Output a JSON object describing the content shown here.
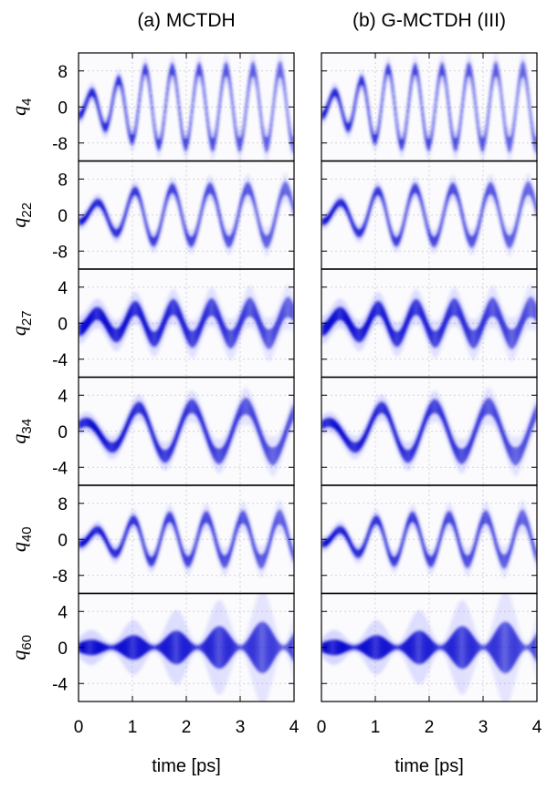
{
  "chart_data": {
    "type": "heatmap",
    "columns": [
      {
        "title": "(a) MCTDH"
      },
      {
        "title": "(b) G-MCTDH (III)"
      }
    ],
    "xlabel": "time [ps]",
    "xlim": [
      0,
      4
    ],
    "xticks": [
      0,
      1,
      2,
      3,
      4
    ],
    "grid": true,
    "rows": [
      {
        "coordinate": "q",
        "index": "4",
        "ylim": [
          -12,
          12
        ],
        "yticks": [
          8,
          0,
          -8
        ],
        "period": 0.5,
        "amp0": 2.0,
        "amp1": 8.5,
        "width": 0.9,
        "spread": 1.0,
        "phase": 0.22
      },
      {
        "coordinate": "q",
        "index": "22",
        "ylim": [
          -12,
          12
        ],
        "yticks": [
          8,
          0,
          -8
        ],
        "period": 0.7,
        "amp0": 1.5,
        "amp1": 6.0,
        "width": 0.8,
        "spread": 0.8,
        "phase": 0.23
      },
      {
        "coordinate": "q",
        "index": "27",
        "ylim": [
          -6,
          6
        ],
        "yticks": [
          4,
          0,
          -4
        ],
        "period": 0.71,
        "amp0": 0.8,
        "amp1": 1.8,
        "width": 0.7,
        "spread": 0.5,
        "phase": 0.22
      },
      {
        "coordinate": "q",
        "index": "34",
        "ylim": [
          -6,
          6
        ],
        "yticks": [
          4,
          0,
          -4
        ],
        "period": 1.0,
        "amp0": 0.8,
        "amp1": 2.8,
        "width": 0.5,
        "spread": 0.6,
        "phase": 0.85
      },
      {
        "coordinate": "q",
        "index": "40",
        "ylim": [
          -12,
          12
        ],
        "yticks": [
          8,
          0,
          -8
        ],
        "period": 0.68,
        "amp0": 1.0,
        "amp1": 5.0,
        "width": 0.8,
        "spread": 1.0,
        "phase": 0.23
      },
      {
        "coordinate": "q",
        "index": "60",
        "ylim": [
          -6,
          6
        ],
        "yticks": [
          4,
          0,
          -4
        ],
        "period": 0.8,
        "amp0": 0.1,
        "amp1": 0.3,
        "width": 0.25,
        "spread": 2.5,
        "phase": 0.0,
        "breathing": true
      }
    ]
  }
}
